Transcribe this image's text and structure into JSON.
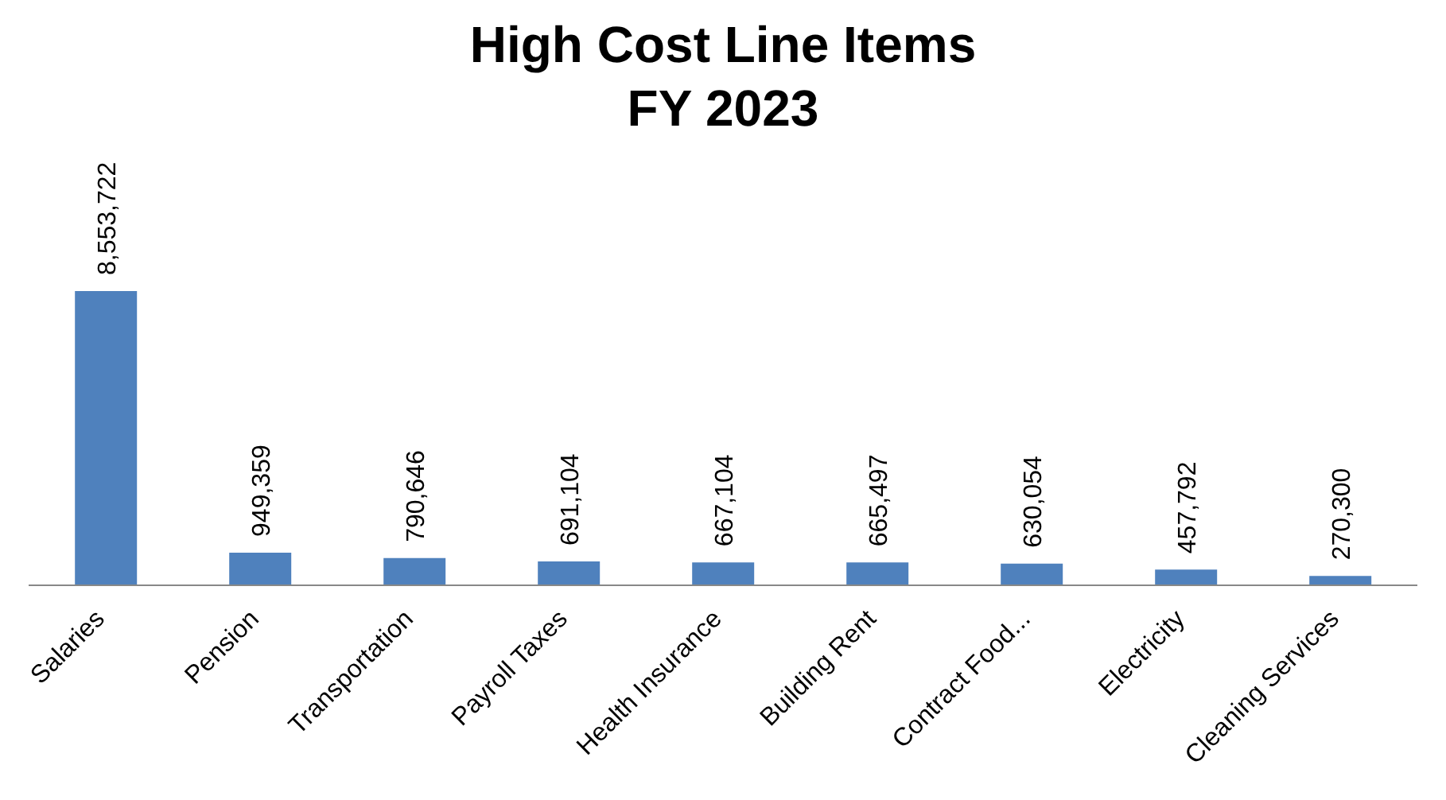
{
  "chart_data": {
    "type": "bar",
    "title": "High Cost Line Items",
    "subtitle": "FY 2023",
    "categories": [
      "Salaries",
      "Pension",
      "Transportation",
      "Payroll Taxes",
      "Health Insurance",
      "Building Rent",
      "Contract Food...",
      "Electricity",
      "Cleaning Services"
    ],
    "values": [
      8553722,
      949359,
      790646,
      691104,
      667104,
      665497,
      630054,
      457792,
      270300
    ],
    "value_labels": [
      "8,553,722",
      "949,359",
      "790,646",
      "691,104",
      "667,104",
      "665,497",
      "630,054",
      "457,792",
      "270,300"
    ],
    "color": "#4f81bd"
  }
}
